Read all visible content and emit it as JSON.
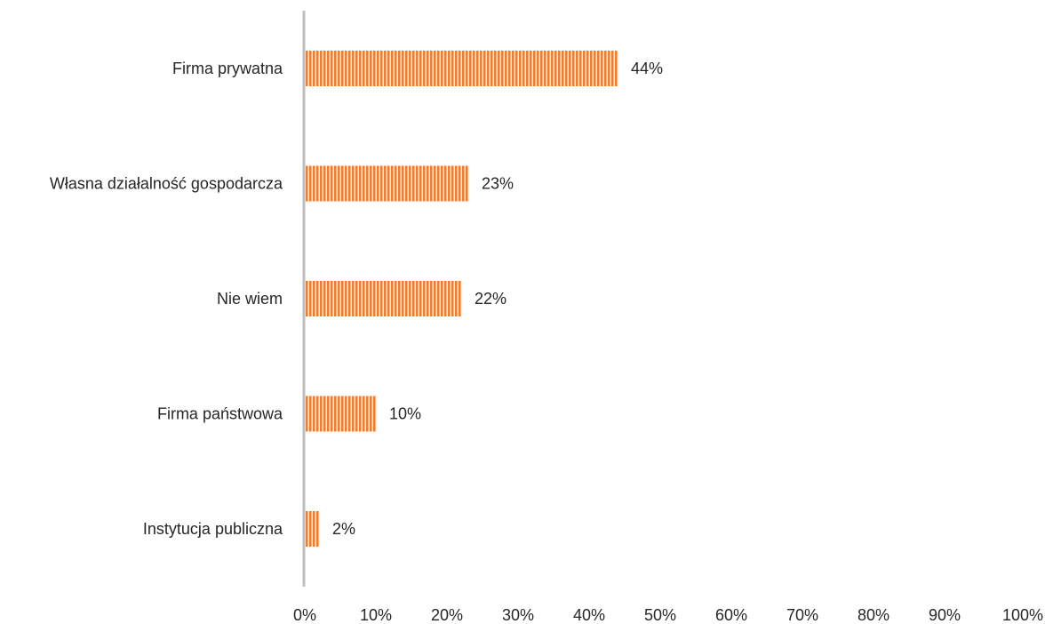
{
  "chart_data": {
    "type": "bar",
    "orientation": "horizontal",
    "title": "",
    "xlabel": "",
    "ylabel": "",
    "categories": [
      "Firma prywatna",
      "Własna działalność gospodarcza",
      "Nie wiem ",
      "Firma państwowa",
      "Instytucja publiczna"
    ],
    "values": [
      44,
      23,
      22,
      10,
      2
    ],
    "value_labels": [
      "44%",
      "23%",
      "22%",
      "10%",
      "2%"
    ],
    "xlim": [
      0,
      100
    ],
    "x_ticks": [
      0,
      10,
      20,
      30,
      40,
      50,
      60,
      70,
      80,
      90,
      100
    ],
    "x_tick_labels": [
      "0%",
      "10%",
      "20%",
      "30%",
      "40%",
      "50%",
      "60%",
      "70%",
      "80%",
      "90%",
      "100%"
    ],
    "grid": false,
    "legend": "none",
    "colors": {
      "bar_fill": "#ED7D31",
      "bar_stripe": "#FFFFFF",
      "axis": "#BFBFBF",
      "text": "#262626"
    },
    "bar_pattern": "vertical-stripes"
  }
}
